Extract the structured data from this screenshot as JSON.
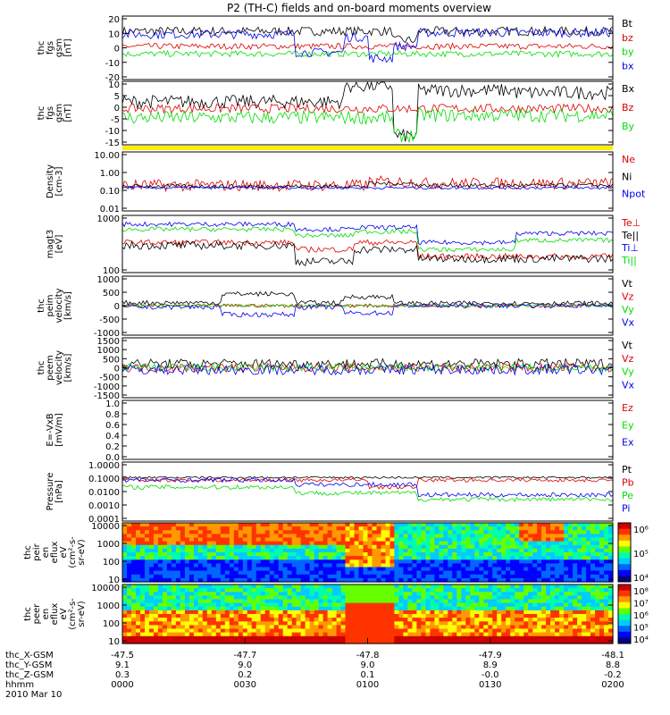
{
  "title": "P2 (TH-C) fields and on-board moments overview",
  "colors": {
    "black": "#000000",
    "red": "#dd0000",
    "green": "#00dd00",
    "blue": "#0000ee",
    "yellow": "#ffee00"
  },
  "chart_data": [
    {
      "type": "line",
      "ylabel": [
        "thc",
        "fgs",
        "gsm",
        "[nT]"
      ],
      "yticks": [
        "20",
        "10",
        "0",
        "-10",
        "-20"
      ],
      "ylim": [
        -20,
        22
      ],
      "series": [
        {
          "name": "Bt",
          "color": "black"
        },
        {
          "name": "bz",
          "color": "red"
        },
        {
          "name": "by",
          "color": "green"
        },
        {
          "name": "bx",
          "color": "blue"
        }
      ]
    },
    {
      "type": "line",
      "ylabel": [
        "thc",
        "fgs",
        "gsm",
        "[nT]"
      ],
      "yticks": [
        "10",
        "5",
        "0",
        "-5",
        "-10",
        "-15"
      ],
      "ylim": [
        -16,
        12
      ],
      "series": [
        {
          "name": "Bx",
          "color": "black"
        },
        {
          "name": "Bz",
          "color": "red"
        },
        {
          "name": "By",
          "color": "green"
        }
      ]
    },
    {
      "type": "line",
      "ylabel": [
        "Density",
        "[cm-3]"
      ],
      "yticks": [
        "10.00",
        "1.00",
        "0.10",
        "0.01"
      ],
      "ylim": [
        0.01,
        10
      ],
      "log": true,
      "series": [
        {
          "name": "Ne",
          "color": "red"
        },
        {
          "name": "Ni",
          "color": "black"
        },
        {
          "name": "Npot",
          "color": "blue"
        }
      ]
    },
    {
      "type": "line",
      "ylabel": [
        "magt3",
        "[eV]"
      ],
      "yticks": [
        "1000",
        "100"
      ],
      "ylim": [
        20,
        6000
      ],
      "log": true,
      "series": [
        {
          "name": "Te⊥",
          "color": "red"
        },
        {
          "name": "Te||",
          "color": "black"
        },
        {
          "name": "Ti⊥",
          "color": "blue"
        },
        {
          "name": "Ti||",
          "color": "green"
        }
      ]
    },
    {
      "type": "line",
      "ylabel": [
        "thc",
        "peim",
        "velocity",
        "[km/s]"
      ],
      "yticks": [
        "1000",
        "500",
        "0",
        "-500",
        "-1000"
      ],
      "ylim": [
        -1000,
        1000
      ],
      "series": [
        {
          "name": "Vt",
          "color": "black"
        },
        {
          "name": "Vz",
          "color": "red"
        },
        {
          "name": "Vy",
          "color": "green"
        },
        {
          "name": "Vx",
          "color": "blue"
        }
      ]
    },
    {
      "type": "line",
      "ylabel": [
        "thc",
        "peem",
        "velocity",
        "[km/s]"
      ],
      "yticks": [
        "1500",
        "1000",
        "500",
        "0",
        "-500",
        "-1000",
        "-1500"
      ],
      "ylim": [
        -1500,
        1500
      ],
      "series": [
        {
          "name": "Vt",
          "color": "black"
        },
        {
          "name": "Vz",
          "color": "red"
        },
        {
          "name": "Vy",
          "color": "green"
        },
        {
          "name": "Vx",
          "color": "blue"
        }
      ]
    },
    {
      "type": "line",
      "ylabel": [
        "E=-VxB",
        "[mV/m]"
      ],
      "yticks": [
        "1.0",
        "0.8",
        "0.6",
        "0.4",
        "0.2",
        "0.0"
      ],
      "ylim": [
        0,
        1
      ],
      "series": [
        {
          "name": "Ez",
          "color": "red"
        },
        {
          "name": "Ey",
          "color": "green"
        },
        {
          "name": "Ex",
          "color": "blue"
        }
      ]
    },
    {
      "type": "line",
      "ylabel": [
        "Pressure",
        "[nPa]"
      ],
      "yticks": [
        "1.0000",
        "0.1000",
        "0.0100",
        "0.0010",
        "0.0001"
      ],
      "ylim": [
        0.0001,
        1
      ],
      "log": true,
      "series": [
        {
          "name": "Pt",
          "color": "black"
        },
        {
          "name": "Pb",
          "color": "red"
        },
        {
          "name": "Pe",
          "color": "green"
        },
        {
          "name": "Pi",
          "color": "blue"
        }
      ]
    },
    {
      "type": "heatmap",
      "ylabel": [
        "thc",
        "peir",
        "en",
        "eflux",
        "eV",
        "(cm²-s-",
        "sr-eV)"
      ],
      "yticks": [
        "10000",
        "1000",
        "100",
        "10"
      ],
      "colorbar": [
        "10⁶",
        "10⁵",
        "10⁴"
      ]
    },
    {
      "type": "heatmap",
      "ylabel": [
        "thc",
        "peer",
        "en",
        "eflux",
        "eV",
        "(cm²-s-",
        "sr-eV)"
      ],
      "yticks": [
        "10000",
        "1000",
        "100",
        "10"
      ],
      "colorbar": [
        "10⁸",
        "10⁷",
        "10⁶",
        "10⁵",
        "10⁴"
      ]
    }
  ],
  "xaxis": {
    "rows": [
      {
        "label": "thc_X-GSM",
        "values": [
          "-47.5",
          "-47.7",
          "-47.8",
          "-47.9",
          "-48.1"
        ]
      },
      {
        "label": "thc_Y-GSM",
        "values": [
          "9.1",
          "9.0",
          "9.0",
          "8.9",
          "8.8"
        ]
      },
      {
        "label": "thc_Z-GSM",
        "values": [
          "0.3",
          "0.2",
          "0.1",
          "-0.0",
          "-0.2"
        ]
      },
      {
        "label": "hhmm",
        "values": [
          "0000",
          "0030",
          "0100",
          "0130",
          "0200"
        ]
      }
    ],
    "date": "2010 Mar 10"
  }
}
